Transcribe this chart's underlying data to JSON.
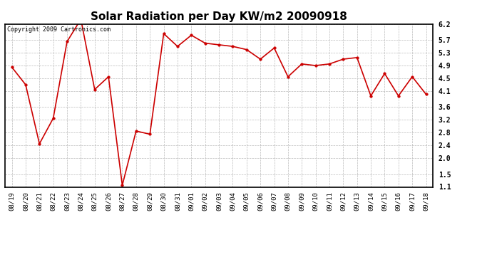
{
  "title": "Solar Radiation per Day KW/m2 20090918",
  "copyright": "Copyright 2009 Cartronics.com",
  "x_labels": [
    "08/19",
    "08/20",
    "08/21",
    "08/22",
    "08/23",
    "08/24",
    "08/25",
    "08/26",
    "08/27",
    "08/28",
    "08/29",
    "08/30",
    "08/31",
    "09/01",
    "09/02",
    "09/03",
    "09/04",
    "09/05",
    "09/06",
    "09/07",
    "09/08",
    "09/09",
    "09/10",
    "09/11",
    "09/12",
    "09/13",
    "09/14",
    "09/15",
    "09/16",
    "09/17",
    "09/18"
  ],
  "y_values": [
    4.85,
    4.3,
    2.45,
    3.25,
    5.65,
    6.35,
    4.15,
    4.55,
    1.15,
    2.85,
    2.75,
    5.9,
    5.5,
    5.85,
    5.6,
    5.55,
    5.5,
    5.4,
    5.1,
    5.45,
    4.55,
    4.95,
    4.9,
    4.95,
    5.1,
    5.15,
    3.95,
    4.65,
    3.95,
    4.55,
    4.0
  ],
  "line_color": "#cc0000",
  "marker": "o",
  "marker_size": 2.5,
  "line_width": 1.2,
  "ylim": [
    1.1,
    6.2
  ],
  "yticks": [
    1.1,
    1.5,
    2.0,
    2.4,
    2.8,
    3.2,
    3.6,
    4.1,
    4.5,
    4.9,
    5.3,
    5.7,
    6.2
  ],
  "ytick_labels": [
    "1.1",
    "1.5",
    "2.0",
    "2.4",
    "2.8",
    "3.2",
    "3.6",
    "4.1",
    "4.5",
    "4.9",
    "5.3",
    "5.7",
    "6.2"
  ],
  "bg_color": "#ffffff",
  "grid_color": "#bbbbbb",
  "title_fontsize": 11,
  "tick_fontsize": 6.5,
  "copyright_fontsize": 6.0
}
